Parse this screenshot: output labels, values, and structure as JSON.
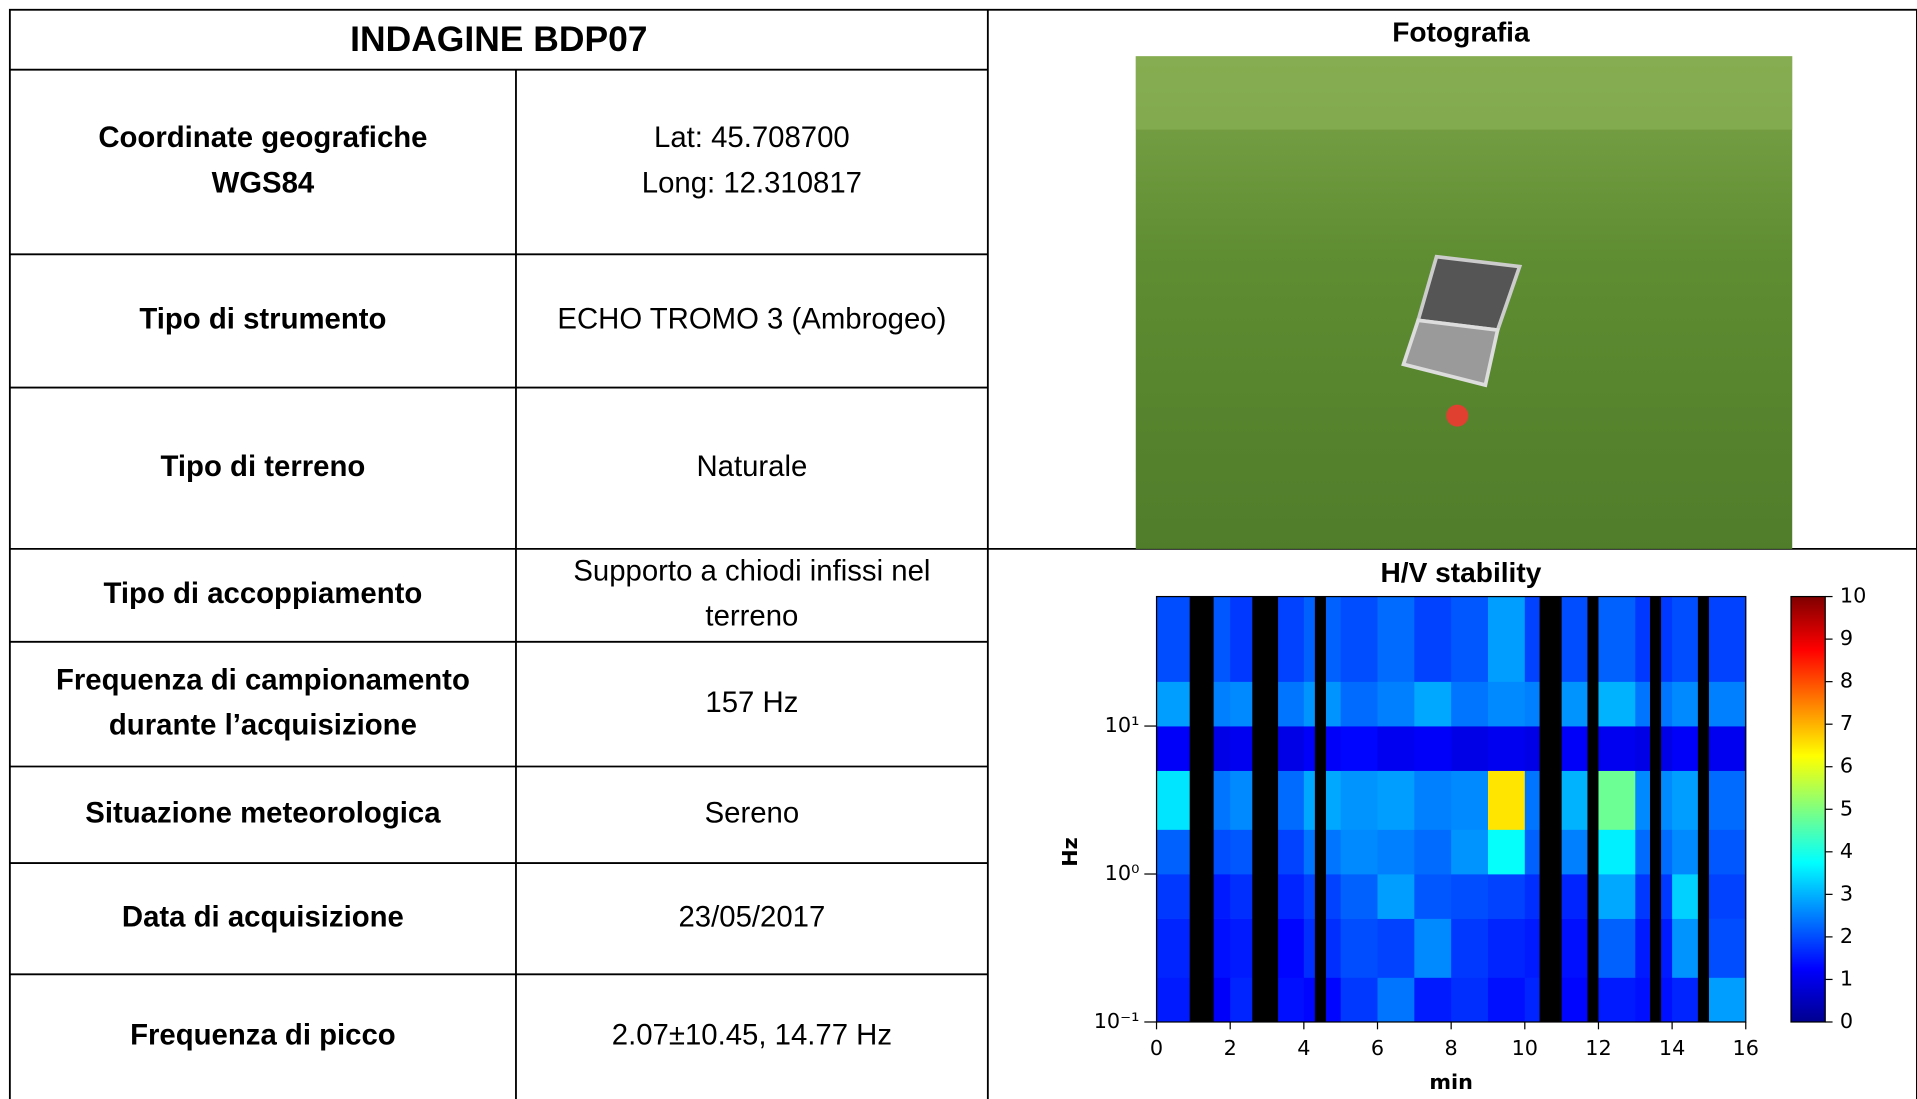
{
  "table": {
    "title": "INDAGINE BDP07",
    "rows": [
      {
        "label": [
          "Coordinate geografiche",
          "WGS84"
        ],
        "value": [
          "Lat: 45.708700",
          "Long: 12.310817"
        ]
      },
      {
        "label": [
          "Tipo di strumento"
        ],
        "value": [
          "ECHO TROMO 3 (Ambrogeo)"
        ]
      },
      {
        "label": [
          "Tipo di terreno"
        ],
        "value": [
          "Naturale"
        ]
      },
      {
        "label": [
          "Tipo di accoppiamento"
        ],
        "value": [
          "Supporto a chiodi infissi nel",
          "terreno"
        ]
      },
      {
        "label": [
          "Frequenza di campionamento",
          "durante l’acquisizione"
        ],
        "value": [
          "157 Hz"
        ]
      },
      {
        "label": [
          "Situazione meteorologica"
        ],
        "value": [
          "Sereno"
        ]
      },
      {
        "label": [
          "Data di acquisizione"
        ],
        "value": [
          "23/05/2017"
        ]
      },
      {
        "label": [
          "Frequenza di picco"
        ],
        "value": [
          "2.07±10.45, 14.77 Hz"
        ]
      }
    ]
  },
  "photo": {
    "title": "Fotografia"
  },
  "chart_data": {
    "type": "heatmap",
    "title": "H/V stability",
    "x_label": "min",
    "y_label": "Hz",
    "xlim": [
      0,
      16
    ],
    "xticks": [
      0,
      2,
      4,
      6,
      8,
      10,
      12,
      14,
      16
    ],
    "ylim": [
      0.1,
      75
    ],
    "log_y": true,
    "yticks": [
      {
        "value": 0.1,
        "label": "10⁻¹"
      },
      {
        "value": 1,
        "label": "10⁰"
      },
      {
        "value": 10,
        "label": "10¹"
      }
    ],
    "x_bins": [
      0,
      1,
      2,
      3,
      4,
      5,
      6,
      7,
      8,
      9,
      10,
      11,
      12,
      13,
      14,
      15,
      16
    ],
    "y_bins": [
      0.1,
      0.2,
      0.5,
      1,
      2,
      5,
      10,
      20,
      75
    ],
    "values": [
      [
        1.5,
        1.2,
        1.6,
        1.4,
        1.3,
        1.8,
        2.4,
        1.5,
        1.7,
        1.4,
        1.6,
        1.3,
        1.5,
        1.4,
        1.6,
        2.8
      ],
      [
        1.6,
        1.4,
        1.5,
        1.3,
        1.7,
        2.0,
        1.9,
        2.6,
        1.8,
        1.6,
        1.5,
        1.4,
        2.2,
        1.5,
        2.7,
        2.0
      ],
      [
        1.8,
        1.5,
        1.7,
        1.6,
        1.9,
        2.2,
        2.8,
        2.1,
        2.0,
        1.9,
        1.7,
        1.6,
        2.9,
        1.8,
        3.3,
        1.9
      ],
      [
        2.2,
        2.0,
        2.1,
        1.9,
        2.4,
        2.6,
        2.5,
        2.3,
        2.7,
        3.8,
        2.2,
        2.5,
        3.6,
        2.3,
        2.6,
        2.1
      ],
      [
        3.5,
        2.4,
        2.6,
        2.3,
        2.9,
        2.7,
        2.8,
        2.5,
        2.6,
        6.5,
        2.4,
        3.0,
        4.8,
        2.6,
        2.8,
        2.3
      ],
      [
        1.2,
        1.0,
        1.1,
        1.0,
        1.2,
        1.3,
        1.1,
        1.2,
        1.0,
        1.1,
        1.0,
        1.2,
        1.1,
        1.0,
        1.2,
        1.1
      ],
      [
        2.8,
        2.5,
        2.6,
        2.4,
        2.7,
        2.3,
        2.5,
        2.9,
        2.4,
        2.6,
        2.5,
        2.7,
        3.0,
        2.4,
        2.6,
        2.5
      ],
      [
        2.0,
        2.1,
        1.8,
        1.9,
        2.2,
        2.0,
        2.3,
        1.9,
        2.1,
        2.8,
        1.9,
        2.0,
        2.2,
        1.8,
        2.0,
        1.9
      ]
    ],
    "rejected": [
      [
        0.9,
        1.55
      ],
      [
        2.6,
        3.3
      ],
      [
        4.3,
        4.6
      ],
      [
        10.4,
        11.0
      ],
      [
        11.7,
        12.0
      ],
      [
        13.4,
        13.7
      ],
      [
        14.7,
        15.0
      ]
    ],
    "colormap": "jet",
    "colorbar": {
      "lim": [
        0,
        10
      ],
      "ticks": [
        0,
        1,
        2,
        3,
        4,
        5,
        6,
        7,
        8,
        9,
        10
      ]
    }
  }
}
